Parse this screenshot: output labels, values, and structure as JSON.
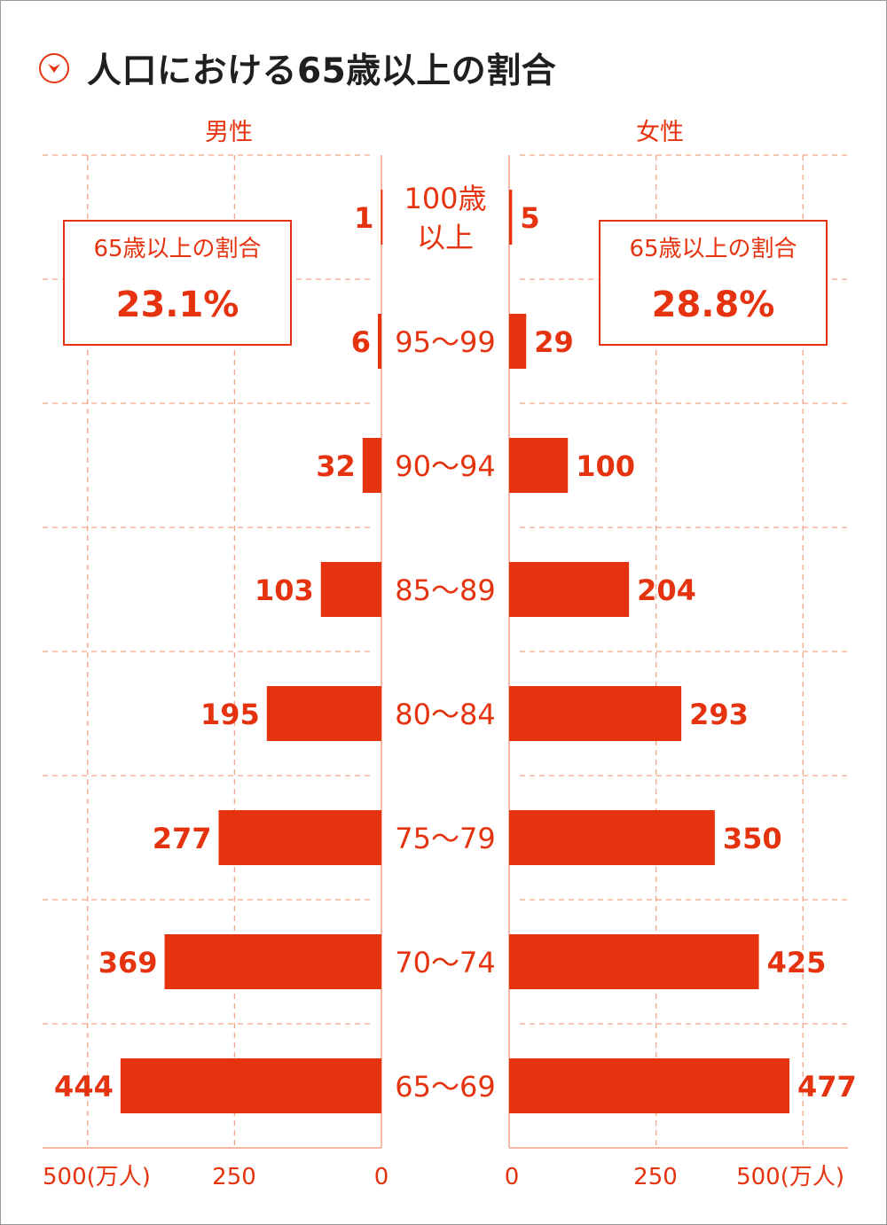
{
  "title": "人口における65歳以上の割合",
  "icon": "chevron-down-circle-icon",
  "colors": {
    "accent": "#e6330f",
    "grid": "#f2a488",
    "text": "#1f1f1f"
  },
  "male_label": "男性",
  "female_label": "女性",
  "male_box": {
    "label": "65歳以上の割合",
    "value": "23.1%"
  },
  "female_box": {
    "label": "65歳以上の割合",
    "value": "28.8%"
  },
  "chart_data": {
    "type": "bar",
    "orientation": "horizontal-population-pyramid",
    "categories": [
      "100歳\n以上",
      "95〜99",
      "90〜94",
      "85〜89",
      "80〜84",
      "75〜79",
      "70〜74",
      "65〜69"
    ],
    "series": [
      {
        "name": "男性",
        "values": [
          1,
          6,
          32,
          103,
          195,
          277,
          369,
          444
        ]
      },
      {
        "name": "女性",
        "values": [
          5,
          29,
          100,
          204,
          293,
          350,
          425,
          477
        ]
      }
    ],
    "male_ticks": [
      "500(万人)",
      "250",
      "0"
    ],
    "female_ticks": [
      "0",
      "250",
      "500(万人)"
    ],
    "xlim": [
      0,
      500
    ],
    "grid": true
  }
}
